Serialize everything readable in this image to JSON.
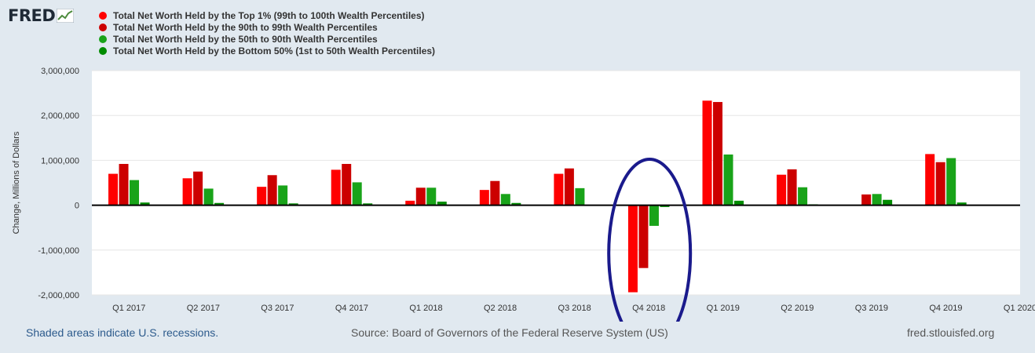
{
  "header": {
    "logo_text": "FRED",
    "logo_icon": "trend-line-icon"
  },
  "colors": {
    "page_bg": "#e1e9f0",
    "plot_bg": "#ffffff",
    "gridline": "#e6e6e6",
    "zero_line": "#000000",
    "annotation_ellipse": "#1a1a8c"
  },
  "chart_data": {
    "type": "bar",
    "title": "",
    "xlabel": "",
    "ylabel": "Change, Millions of Dollars",
    "ylim": [
      -2000000,
      3000000
    ],
    "yticks": [
      3000000,
      2000000,
      1000000,
      0,
      -1000000,
      -2000000
    ],
    "ytick_labels": [
      "3,000,000",
      "2,000,000",
      "1,000,000",
      "0",
      "-1,000,000",
      "-2,000,000"
    ],
    "categories": [
      "Q1 2017",
      "Q2 2017",
      "Q3 2017",
      "Q4 2017",
      "Q1 2018",
      "Q2 2018",
      "Q3 2018",
      "Q4 2018",
      "Q1 2019",
      "Q2 2019",
      "Q3 2019",
      "Q4 2019",
      "Q1 2020"
    ],
    "grid": true,
    "legend_position": "top-left",
    "series": [
      {
        "name": "Total Net Worth Held by the Top 1% (99th to 100th Wealth Percentiles)",
        "color": "#ff0000",
        "values": [
          700000,
          600000,
          410000,
          790000,
          100000,
          340000,
          700000,
          -1940000,
          2330000,
          680000,
          0,
          1140000,
          null
        ]
      },
      {
        "name": "Total Net Worth Held by the 90th to 99th Wealth Percentiles",
        "color": "#cc0000",
        "values": [
          920000,
          750000,
          670000,
          920000,
          390000,
          540000,
          820000,
          -1400000,
          2300000,
          800000,
          240000,
          960000,
          null
        ]
      },
      {
        "name": "Total Net Worth Held by the 50th to 90th Wealth Percentiles",
        "color": "#19a319",
        "values": [
          560000,
          370000,
          440000,
          510000,
          390000,
          250000,
          380000,
          -460000,
          1130000,
          400000,
          250000,
          1050000,
          null
        ]
      },
      {
        "name": "Total Net Worth Held by the Bottom 50% (1st to 50th Wealth Percentiles)",
        "color": "#008c00",
        "values": [
          60000,
          50000,
          40000,
          40000,
          80000,
          50000,
          0,
          -40000,
          100000,
          20000,
          120000,
          60000,
          null
        ]
      }
    ],
    "annotations": [
      {
        "type": "ellipse",
        "around_category": "Q4 2018"
      }
    ]
  },
  "footer": {
    "recession_note": "Shaded areas indicate U.S. recessions.",
    "source": "Source: Board of Governors of the Federal Reserve System (US)",
    "site": "fred.stlouisfed.org"
  }
}
